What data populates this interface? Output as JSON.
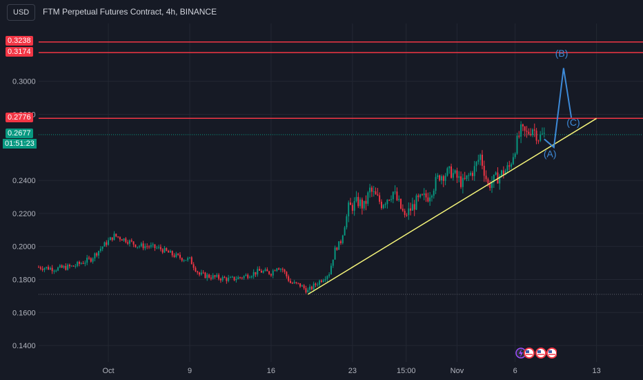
{
  "header": {
    "currency": "USD",
    "title": "FTM Perpetual Futures Contract, 4h, BINANCE"
  },
  "colors": {
    "background": "#161a25",
    "up": "#089981",
    "down": "#f23645",
    "resistance": "#f23645",
    "trendline": "#f5f57a",
    "projection": "#3d8ad8",
    "grid": "#232733",
    "text": "#d1d4dc"
  },
  "price_tags": {
    "r1": "0.3238",
    "r2": "0.3174",
    "r3": "0.2776",
    "last": "0.2677",
    "countdown": "01:51:23"
  },
  "chart_data": {
    "type": "candlestick",
    "title": "FTM Perpetual Futures Contract, 4h, BINANCE",
    "ylim": [
      0.13,
      0.335
    ],
    "y_ticks": [
      0.14,
      0.16,
      0.18,
      0.2,
      0.22,
      0.24,
      0.28,
      0.3
    ],
    "y_tick_labels": [
      "0.1400",
      "0.1600",
      "0.1800",
      "0.2000",
      "0.2200",
      "0.2400",
      "0.2800",
      "0.3000"
    ],
    "x_range": [
      "2023-09-26",
      "2023-11-17"
    ],
    "x_ticks": [
      {
        "label": "Oct",
        "date": "2023-10-02T00:00"
      },
      {
        "label": "9",
        "date": "2023-10-09T00:00"
      },
      {
        "label": "16",
        "date": "2023-10-16T00:00"
      },
      {
        "label": "23",
        "date": "2023-10-23T00:00"
      },
      {
        "label": "15:00",
        "date": "2023-10-27T15:00"
      },
      {
        "label": "Nov",
        "date": "2023-11-01T00:00"
      },
      {
        "label": "6",
        "date": "2023-11-06T00:00"
      },
      {
        "label": "13",
        "date": "2023-11-13T00:00"
      }
    ],
    "path": [
      [
        "2023-09-26T00:00",
        0.1875
      ],
      [
        "2023-09-27T12:00",
        0.1865
      ],
      [
        "2023-09-29T00:00",
        0.188
      ],
      [
        "2023-09-30T12:00",
        0.1925
      ],
      [
        "2023-10-01T12:00",
        0.2
      ],
      [
        "2023-10-02T12:00",
        0.2065
      ],
      [
        "2023-10-03T12:00",
        0.204
      ],
      [
        "2023-10-04T12:00",
        0.2005
      ],
      [
        "2023-10-05T12:00",
        0.2
      ],
      [
        "2023-10-06T12:00",
        0.1985
      ],
      [
        "2023-10-07T12:00",
        0.195
      ],
      [
        "2023-10-08T12:00",
        0.1925
      ],
      [
        "2023-10-09T00:00",
        0.192
      ],
      [
        "2023-10-09T20:00",
        0.183
      ],
      [
        "2023-10-11T00:00",
        0.1815
      ],
      [
        "2023-10-12T12:00",
        0.18
      ],
      [
        "2023-10-13T12:00",
        0.1815
      ],
      [
        "2023-10-15T00:00",
        0.185
      ],
      [
        "2023-10-16T00:00",
        0.184
      ],
      [
        "2023-10-16T12:00",
        0.188
      ],
      [
        "2023-10-17T00:00",
        0.186
      ],
      [
        "2023-10-17T16:00",
        0.178
      ],
      [
        "2023-10-18T12:00",
        0.1765
      ],
      [
        "2023-10-19T04:00",
        0.173
      ],
      [
        "2023-10-20T04:00",
        0.179
      ],
      [
        "2023-10-21T00:00",
        0.184
      ],
      [
        "2023-10-21T12:00",
        0.198
      ],
      [
        "2023-10-22T00:00",
        0.203
      ],
      [
        "2023-10-22T16:00",
        0.223
      ],
      [
        "2023-10-23T12:00",
        0.227
      ],
      [
        "2023-10-24T00:00",
        0.224
      ],
      [
        "2023-10-24T12:00",
        0.234
      ],
      [
        "2023-10-25T12:00",
        0.226
      ],
      [
        "2023-10-26T12:00",
        0.233
      ],
      [
        "2023-10-27T12:00",
        0.218
      ],
      [
        "2023-10-28T12:00",
        0.227
      ],
      [
        "2023-10-29T12:00",
        0.2305
      ],
      [
        "2023-10-30T12:00",
        0.243
      ],
      [
        "2023-10-31T12:00",
        0.245
      ],
      [
        "2023-11-01T12:00",
        0.238
      ],
      [
        "2023-11-02T12:00",
        0.247
      ],
      [
        "2023-11-03T00:00",
        0.255
      ],
      [
        "2023-11-03T16:00",
        0.237
      ],
      [
        "2023-11-04T12:00",
        0.242
      ],
      [
        "2023-11-05T12:00",
        0.248
      ],
      [
        "2023-11-06T00:00",
        0.26
      ],
      [
        "2023-11-06T12:00",
        0.27
      ],
      [
        "2023-11-07T00:00",
        0.268
      ],
      [
        "2023-11-07T12:00",
        0.272
      ],
      [
        "2023-11-08T00:00",
        0.266
      ],
      [
        "2023-11-08T12:00",
        0.2677
      ]
    ],
    "resistance_levels": [
      0.3238,
      0.3174,
      0.2776
    ],
    "last_price": 0.2677,
    "dotted_levels": [
      0.2677,
      0.171
    ],
    "trendline": [
      [
        "2023-10-19T04:00",
        0.171
      ],
      [
        "2023-11-13T00:00",
        0.2775
      ]
    ],
    "projection": [
      [
        "2023-11-08T12:00",
        0.265
      ],
      [
        "2023-11-09T08:00",
        0.26
      ],
      [
        "2023-11-10T04:00",
        0.308
      ],
      [
        "2023-11-10T20:00",
        0.278
      ]
    ],
    "wave_labels": [
      {
        "text": "(A)",
        "x": "2023-11-09T00:00",
        "y": 0.254
      },
      {
        "text": "(B)",
        "x": "2023-11-10T00:00",
        "y": 0.315
      },
      {
        "text": "(C)",
        "x": "2023-11-11T00:00",
        "y": 0.273
      }
    ]
  }
}
